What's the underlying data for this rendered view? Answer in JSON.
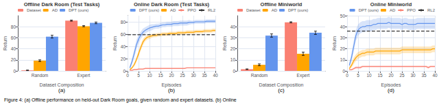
{
  "chart_data": [
    {
      "type": "bar",
      "title": "Offline Dark Room (Test Tasks)",
      "xlabel": "Dataset Composition",
      "ylabel": "Return",
      "categories": [
        "Random",
        "Expert"
      ],
      "series": [
        {
          "name": "Dataset",
          "color": "#FA8072",
          "values": [
            1.0,
            91.0
          ],
          "errors": [
            0.5,
            1.0
          ]
        },
        {
          "name": "AD",
          "color": "#FFA500",
          "values": [
            18.5,
            81.0
          ],
          "errors": [
            1.5,
            1.0
          ]
        },
        {
          "name": "DPT (ours)",
          "color": "#6495ED",
          "values": [
            62.0,
            87.0
          ],
          "errors": [
            2.5,
            1.5
          ]
        }
      ],
      "ylim": [
        0,
        100
      ],
      "yticks": [
        0,
        20,
        40,
        60,
        80
      ],
      "grid": "y",
      "legend": "upper left",
      "annotations": [
        "(a)"
      ]
    },
    {
      "type": "line",
      "title": "Online Dark Room (Test Tasks)",
      "xlabel": "Episodes",
      "ylabel": "Return",
      "x": [
        1,
        2,
        3,
        4,
        5,
        6,
        7,
        8,
        9,
        10,
        11,
        12,
        13,
        14,
        15,
        16,
        17,
        18,
        19,
        20,
        21,
        22,
        23,
        24,
        25,
        26,
        27,
        28,
        29,
        30,
        31,
        32,
        33,
        34,
        35,
        36,
        37,
        38,
        39,
        40
      ],
      "series": [
        {
          "name": "DPT (ours)",
          "color": "#6495ED",
          "values": [
            5,
            15,
            28,
            42,
            52,
            58,
            63,
            66,
            68,
            70,
            71,
            72,
            73,
            73,
            74,
            75,
            75,
            76,
            76,
            76,
            77,
            77,
            77,
            78,
            78,
            78,
            78,
            79,
            79,
            79,
            80,
            80,
            80,
            80,
            80,
            81,
            81,
            81,
            81,
            81
          ],
          "std": [
            3,
            5,
            7,
            8,
            7,
            6,
            6,
            5,
            5,
            5,
            5,
            4,
            4,
            4,
            4,
            4,
            4,
            4,
            4,
            4,
            4,
            4,
            4,
            4,
            4,
            4,
            4,
            4,
            3,
            3,
            3,
            3,
            3,
            3,
            3,
            3,
            3,
            3,
            3,
            3
          ]
        },
        {
          "name": "AD",
          "color": "#FFA500",
          "values": [
            2,
            5,
            10,
            18,
            28,
            38,
            47,
            52,
            55,
            56,
            57,
            58,
            58,
            59,
            59,
            60,
            60,
            60,
            61,
            61,
            61,
            61,
            62,
            62,
            62,
            62,
            63,
            63,
            63,
            63,
            64,
            64,
            64,
            64,
            65,
            65,
            65,
            65,
            66,
            66
          ],
          "std": [
            1,
            2,
            3,
            4,
            5,
            5,
            5,
            4,
            4,
            4,
            3,
            3,
            3,
            3,
            3,
            3,
            3,
            3,
            3,
            3,
            3,
            3,
            3,
            3,
            3,
            3,
            3,
            3,
            3,
            3,
            3,
            3,
            3,
            3,
            3,
            3,
            3,
            3,
            3,
            3
          ]
        },
        {
          "name": "PPO",
          "color": "#FA8072",
          "values": [
            1,
            1,
            2,
            2,
            3,
            3,
            3,
            4,
            4,
            4,
            4,
            4,
            4,
            4,
            4,
            4,
            4,
            4,
            4,
            4,
            4,
            4,
            4,
            4,
            4,
            4,
            5,
            5,
            5,
            5,
            5,
            5,
            5,
            5,
            5,
            5,
            5,
            5,
            5,
            5
          ],
          "std": [
            0.5,
            0.5,
            1,
            1,
            1,
            1,
            1,
            1,
            1,
            1,
            1,
            1,
            1,
            1,
            1,
            1,
            1,
            1,
            1,
            1,
            1,
            1,
            1,
            1,
            1,
            1,
            1,
            1,
            1,
            1,
            1,
            1,
            1,
            1,
            1,
            1,
            1,
            1,
            1,
            1
          ]
        },
        {
          "name": "RL2",
          "type": "hline",
          "color": "#333333",
          "line_style": "dashed",
          "value": 59
        }
      ],
      "xlim": [
        0,
        40
      ],
      "xticks": [
        0,
        5,
        10,
        15,
        20,
        25,
        30,
        35,
        40
      ],
      "ylim": [
        0,
        90
      ],
      "yticks": [
        0,
        20,
        40,
        60,
        80
      ],
      "grid": true,
      "legend": "lower right",
      "annotations": [
        "(b)"
      ]
    },
    {
      "type": "bar",
      "title": "Offline Miniworld",
      "xlabel": "Dataset Composition",
      "ylabel": "Return",
      "categories": [
        "Random",
        "Expert"
      ],
      "series": [
        {
          "name": "Dataset",
          "color": "#FA8072",
          "values": [
            1.5,
            44.0
          ],
          "errors": [
            0.3,
            0.5
          ]
        },
        {
          "name": "AD",
          "color": "#FFA500",
          "values": [
            5.5,
            15.5
          ],
          "errors": [
            0.8,
            1.5
          ]
        },
        {
          "name": "DPT (ours)",
          "color": "#6495ED",
          "values": [
            32.0,
            34.5
          ],
          "errors": [
            1.5,
            1.5
          ]
        }
      ],
      "ylim": [
        0,
        50
      ],
      "yticks": [
        0,
        10,
        20,
        30,
        40
      ],
      "grid": "y",
      "legend": "upper left",
      "annotations": [
        "(c)"
      ]
    },
    {
      "type": "line",
      "title": "Online Miniworld",
      "xlabel": "Episodes",
      "ylabel": "Return",
      "x": [
        1,
        2,
        3,
        4,
        5,
        6,
        7,
        8,
        9,
        10,
        11,
        12,
        13,
        14,
        15,
        16,
        17,
        18,
        19,
        20,
        21,
        22,
        23,
        24,
        25,
        26,
        27,
        28,
        29,
        30,
        31,
        32,
        33,
        34,
        35,
        36,
        37,
        38,
        39,
        40
      ],
      "series": [
        {
          "name": "DPT (ours)",
          "color": "#6495ED",
          "values": [
            5,
            12,
            22,
            32,
            37,
            39,
            40,
            40,
            41,
            41,
            41,
            42,
            42,
            43,
            43,
            43,
            43,
            43,
            44,
            43,
            43,
            43,
            43,
            43,
            42,
            43,
            43,
            42,
            42,
            42,
            42,
            43,
            43,
            43,
            43,
            43,
            43,
            43,
            43,
            43
          ],
          "std": [
            2,
            4,
            5,
            5,
            5,
            5,
            5,
            5,
            5,
            5,
            5,
            5,
            5,
            5,
            5,
            5,
            5,
            5,
            5,
            5,
            5,
            5,
            5,
            5,
            5,
            5,
            5,
            5,
            5,
            5,
            5,
            5,
            5,
            5,
            5,
            5,
            5,
            5,
            5,
            5
          ]
        },
        {
          "name": "AD",
          "color": "#FFA500",
          "values": [
            2,
            5,
            9,
            12,
            14,
            15,
            16,
            16,
            17,
            17,
            17,
            17,
            18,
            18,
            18,
            18,
            18,
            18,
            18,
            18,
            18,
            18,
            18,
            18,
            19,
            19,
            19,
            19,
            19,
            19,
            19,
            19,
            19,
            19,
            19,
            19,
            19,
            19,
            20,
            20
          ],
          "std": [
            1,
            2,
            3,
            3,
            3,
            3,
            3,
            3,
            3,
            3,
            3,
            3,
            3,
            3,
            3,
            3,
            3,
            3,
            3,
            3,
            3,
            3,
            3,
            3,
            3,
            3,
            3,
            3,
            3,
            3,
            3,
            3,
            3,
            3,
            3,
            3,
            3,
            3,
            3,
            3
          ]
        },
        {
          "name": "PPO",
          "color": "#FA8072",
          "values": [
            1,
            1,
            2,
            3,
            3,
            3,
            4,
            4,
            4,
            4,
            4,
            4,
            4,
            4,
            4,
            4,
            4,
            4,
            4,
            4,
            4,
            4,
            4,
            4,
            4,
            4,
            4,
            4,
            4,
            4,
            4,
            4,
            4,
            4,
            4,
            4,
            3,
            4,
            4,
            4
          ],
          "std": [
            0.5,
            0.5,
            1,
            1,
            1,
            1,
            1,
            1,
            1,
            1,
            1,
            1,
            1,
            1,
            1,
            1,
            1,
            1,
            1,
            1,
            1,
            1,
            1,
            1,
            1,
            1,
            1,
            1,
            1,
            1,
            1,
            1,
            1,
            1,
            1,
            1,
            1,
            1,
            1,
            1
          ]
        },
        {
          "name": "RL2",
          "type": "hline",
          "color": "#333333",
          "line_style": "dashed",
          "value": 36
        }
      ],
      "xlim": [
        0,
        40
      ],
      "xticks": [
        0,
        5,
        10,
        15,
        20,
        25,
        30,
        35,
        40
      ],
      "ylim": [
        0,
        50
      ],
      "yticks": [
        0,
        10,
        20,
        30,
        40,
        50
      ],
      "grid": true,
      "legend": "lower right",
      "annotations": [
        "(d)"
      ]
    }
  ],
  "caption": "Figure 4: (a) Offline performance on held-out Dark Room goals, given random and expert datasets. (b) Online"
}
